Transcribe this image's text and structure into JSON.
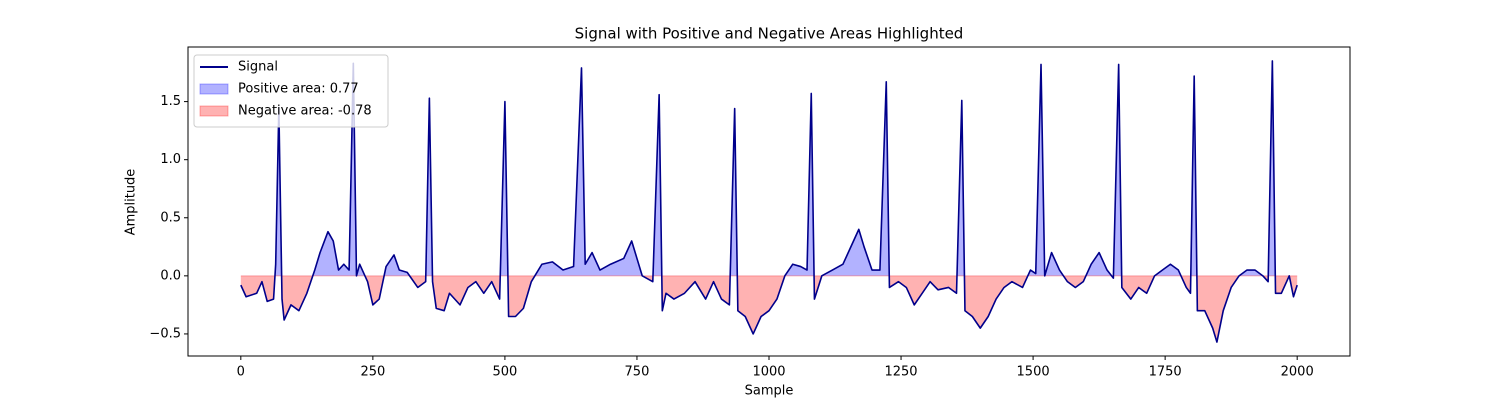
{
  "chart_data": {
    "type": "line",
    "title": "Signal with Positive and Negative Areas Highlighted",
    "xlabel": "Sample",
    "ylabel": "Amplitude",
    "x": [
      0,
      10,
      30,
      40,
      50,
      62,
      66,
      72,
      78,
      82,
      95,
      110,
      125,
      140,
      150,
      165,
      175,
      185,
      195,
      205,
      213,
      219,
      225,
      240,
      250,
      262,
      275,
      290,
      300,
      315,
      335,
      350,
      357,
      363,
      370,
      385,
      395,
      415,
      430,
      445,
      460,
      475,
      490,
      500,
      507,
      520,
      535,
      550,
      570,
      590,
      610,
      630,
      645,
      652,
      665,
      680,
      700,
      725,
      740,
      750,
      760,
      780,
      792,
      798,
      805,
      820,
      840,
      860,
      880,
      895,
      910,
      925,
      935,
      941,
      955,
      970,
      985,
      1000,
      1015,
      1030,
      1045,
      1060,
      1072,
      1080,
      1086,
      1100,
      1120,
      1140,
      1160,
      1170,
      1180,
      1195,
      1210,
      1222,
      1228,
      1245,
      1260,
      1275,
      1290,
      1305,
      1320,
      1340,
      1355,
      1365,
      1371,
      1385,
      1400,
      1415,
      1430,
      1445,
      1460,
      1480,
      1495,
      1505,
      1515,
      1522,
      1535,
      1550,
      1565,
      1580,
      1595,
      1610,
      1625,
      1640,
      1652,
      1662,
      1668,
      1685,
      1700,
      1715,
      1730,
      1745,
      1760,
      1775,
      1790,
      1798,
      1805,
      1811,
      1825,
      1840,
      1848,
      1860,
      1875,
      1890,
      1905,
      1920,
      1935,
      1945,
      1953,
      1959,
      1970,
      1985,
      1993,
      2000
    ],
    "series": [
      {
        "name": "Signal",
        "color": "#00008b",
        "values": [
          -0.08,
          -0.18,
          -0.15,
          -0.05,
          -0.22,
          -0.2,
          0.1,
          1.45,
          -0.2,
          -0.38,
          -0.25,
          -0.3,
          -0.15,
          0.05,
          0.2,
          0.38,
          0.3,
          0.05,
          0.1,
          0.05,
          1.83,
          0,
          0.1,
          -0.05,
          -0.25,
          -0.2,
          0.08,
          0.18,
          0.05,
          0.03,
          -0.1,
          -0.05,
          1.53,
          -0.05,
          -0.28,
          -0.3,
          -0.15,
          -0.25,
          -0.1,
          -0.05,
          -0.15,
          -0.05,
          -0.2,
          1.5,
          -0.35,
          -0.35,
          -0.28,
          -0.05,
          0.1,
          0.12,
          0.05,
          0.08,
          1.79,
          0.1,
          0.2,
          0.05,
          0.1,
          0.15,
          0.3,
          0.15,
          0,
          -0.05,
          1.56,
          -0.3,
          -0.15,
          -0.2,
          -0.15,
          -0.05,
          -0.2,
          -0.05,
          -0.2,
          -0.25,
          1.44,
          -0.3,
          -0.35,
          -0.5,
          -0.35,
          -0.3,
          -0.2,
          0,
          0.1,
          0.08,
          0.05,
          1.57,
          -0.2,
          0,
          0.05,
          0.1,
          0.3,
          0.4,
          0.25,
          0.05,
          0.05,
          1.67,
          -0.1,
          -0.05,
          -0.1,
          -0.25,
          -0.15,
          -0.05,
          -0.12,
          -0.1,
          -0.15,
          1.51,
          -0.3,
          -0.35,
          -0.45,
          -0.35,
          -0.2,
          -0.1,
          -0.05,
          -0.1,
          0.05,
          0.02,
          1.82,
          0,
          0.2,
          0.05,
          -0.05,
          -0.1,
          -0.05,
          0.1,
          0.2,
          0.05,
          -0.02,
          1.82,
          -0.1,
          -0.2,
          -0.1,
          -0.15,
          0,
          0.05,
          0.1,
          0.05,
          -0.1,
          -0.15,
          1.72,
          -0.3,
          -0.3,
          -0.45,
          -0.57,
          -0.3,
          -0.1,
          0,
          0.05,
          0.05,
          0,
          -0.05,
          1.85,
          -0.15,
          -0.15,
          0,
          -0.18,
          -0.08
        ]
      }
    ],
    "fills": [
      {
        "name": "Positive area: 0.77",
        "color": "#0000ff"
      },
      {
        "name": "Negative area: -0.78",
        "color": "#ff0000"
      }
    ],
    "xlim": [
      -100,
      2100
    ],
    "ylim": [
      -0.69,
      1.97
    ],
    "xticks": [
      0,
      250,
      500,
      750,
      1000,
      1250,
      1500,
      1750,
      2000
    ],
    "yticks": [
      {
        "value": -0.5,
        "label": "−0.5"
      },
      {
        "value": 0,
        "label": "0.0"
      },
      {
        "value": 0.5,
        "label": "0.5"
      },
      {
        "value": 1,
        "label": "1.0"
      },
      {
        "value": 1.5,
        "label": "1.5"
      }
    ],
    "legend": "upper left"
  }
}
